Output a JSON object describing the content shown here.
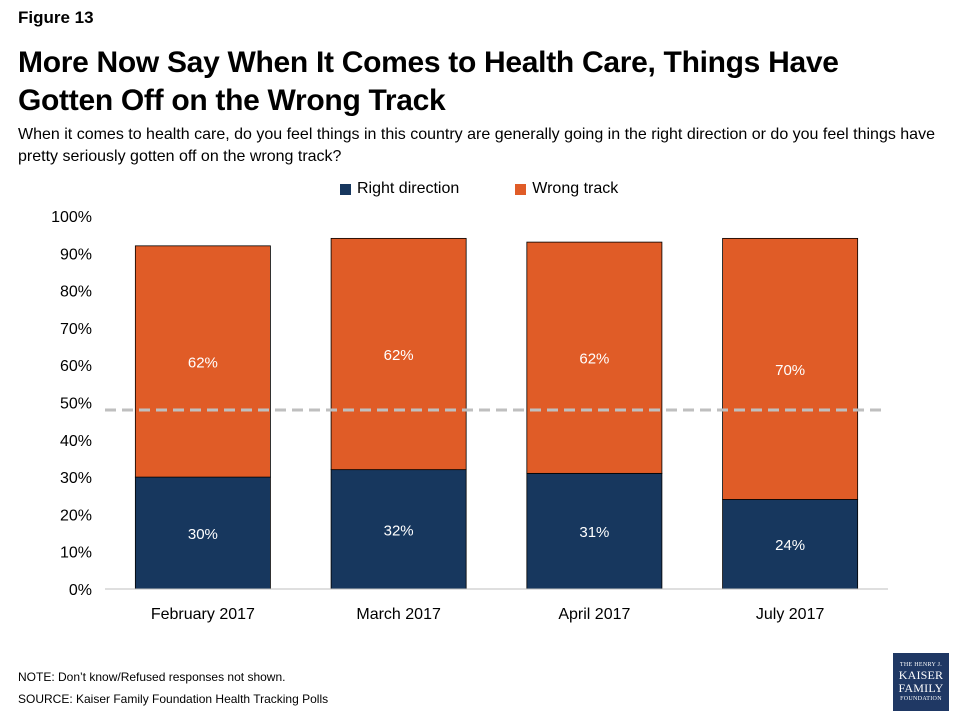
{
  "figure_label": "Figure 13",
  "title": "More Now Say When It Comes to Health Care, Things Have Gotten Off on the Wrong Track",
  "subtitle": "When it comes to health care, do you feel things in this country are generally going in the right direction or do you feel things have pretty seriously gotten off on the wrong track?",
  "note": "NOTE: Don’t know/Refused responses not shown.",
  "source": "SOURCE: Kaiser Family Foundation Health Tracking Polls",
  "logo": {
    "line1": "THE HENRY J.",
    "line2": "KAISER",
    "line3": "FAMILY",
    "line4": "FOUNDATION"
  },
  "colors": {
    "right_direction": "#17375e",
    "wrong_track": "#e05c27",
    "reference_line": "#bfbfbf"
  },
  "chart_data": {
    "type": "bar",
    "stacked": true,
    "categories": [
      "February 2017",
      "March 2017",
      "April 2017",
      "July 2017"
    ],
    "series": [
      {
        "name": "Right direction",
        "values": [
          30,
          32,
          31,
          24
        ],
        "labels": [
          "30%",
          "32%",
          "31%",
          "24%"
        ]
      },
      {
        "name": "Wrong track",
        "values": [
          62,
          62,
          62,
          70
        ],
        "labels": [
          "62%",
          "62%",
          "62%",
          "70%"
        ]
      }
    ],
    "y_ticks": [
      "0%",
      "10%",
      "20%",
      "30%",
      "40%",
      "50%",
      "60%",
      "70%",
      "80%",
      "90%",
      "100%"
    ],
    "ylim": [
      0,
      100
    ],
    "reference_line": 48,
    "legend_position": "top-center",
    "grid": false
  }
}
